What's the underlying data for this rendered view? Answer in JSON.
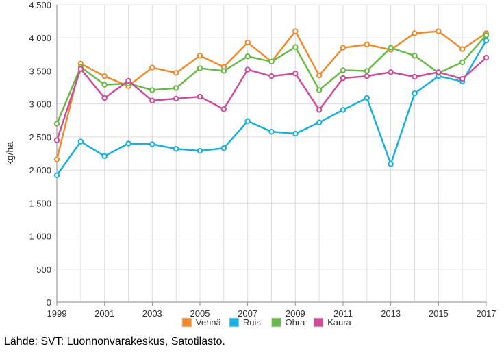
{
  "chart_data": {
    "type": "line",
    "title": "",
    "xlabel": "",
    "ylabel": "kg/ha",
    "ylim": [
      0,
      4500
    ],
    "xlim": [
      1999,
      2017
    ],
    "grid": true,
    "legend_placement": "bottom",
    "x_ticks": [
      1999,
      2001,
      2003,
      2005,
      2007,
      2009,
      2011,
      2013,
      2015,
      2017
    ],
    "x_tick_labels": [
      "1999",
      "2001",
      "2003",
      "2005",
      "2007",
      "2009",
      "2011",
      "2013",
      "2015",
      "2017"
    ],
    "y_ticks": [
      0,
      500,
      1000,
      1500,
      2000,
      2500,
      3000,
      3500,
      4000,
      4500
    ],
    "y_tick_labels": [
      "0",
      "500",
      "1 000",
      "1 500",
      "2 000",
      "2 500",
      "3 000",
      "3 500",
      "4 000",
      "4 500"
    ],
    "x": [
      1999,
      2000,
      2001,
      2002,
      2003,
      2004,
      2005,
      2006,
      2007,
      2008,
      2009,
      2010,
      2011,
      2012,
      2013,
      2014,
      2015,
      2016,
      2017
    ],
    "series": [
      {
        "name": "Vehnä",
        "color": "#ef8a2c",
        "values": [
          2160,
          3610,
          3420,
          3270,
          3550,
          3470,
          3730,
          3560,
          3930,
          3640,
          4100,
          3430,
          3850,
          3900,
          3820,
          4070,
          4100,
          3830,
          4070
        ]
      },
      {
        "name": "Ruis",
        "color": "#17b0e0",
        "values": [
          1920,
          2430,
          2210,
          2400,
          2390,
          2320,
          2290,
          2330,
          2740,
          2580,
          2550,
          2720,
          2910,
          3090,
          2090,
          3160,
          3420,
          3340,
          3960
        ]
      },
      {
        "name": "Ohra",
        "color": "#66bb44",
        "values": [
          2700,
          3560,
          3290,
          3310,
          3210,
          3240,
          3540,
          3500,
          3720,
          3640,
          3860,
          3210,
          3510,
          3500,
          3850,
          3730,
          3470,
          3630,
          4040
        ]
      },
      {
        "name": "Kaura",
        "color": "#d04a9a",
        "values": [
          2450,
          3530,
          3090,
          3350,
          3050,
          3080,
          3110,
          2920,
          3520,
          3420,
          3460,
          2910,
          3390,
          3420,
          3480,
          3410,
          3480,
          3380,
          3700
        ]
      }
    ]
  },
  "source_text": "Lähde: SVT: Luonnonvarakeskus, Satotilasto."
}
